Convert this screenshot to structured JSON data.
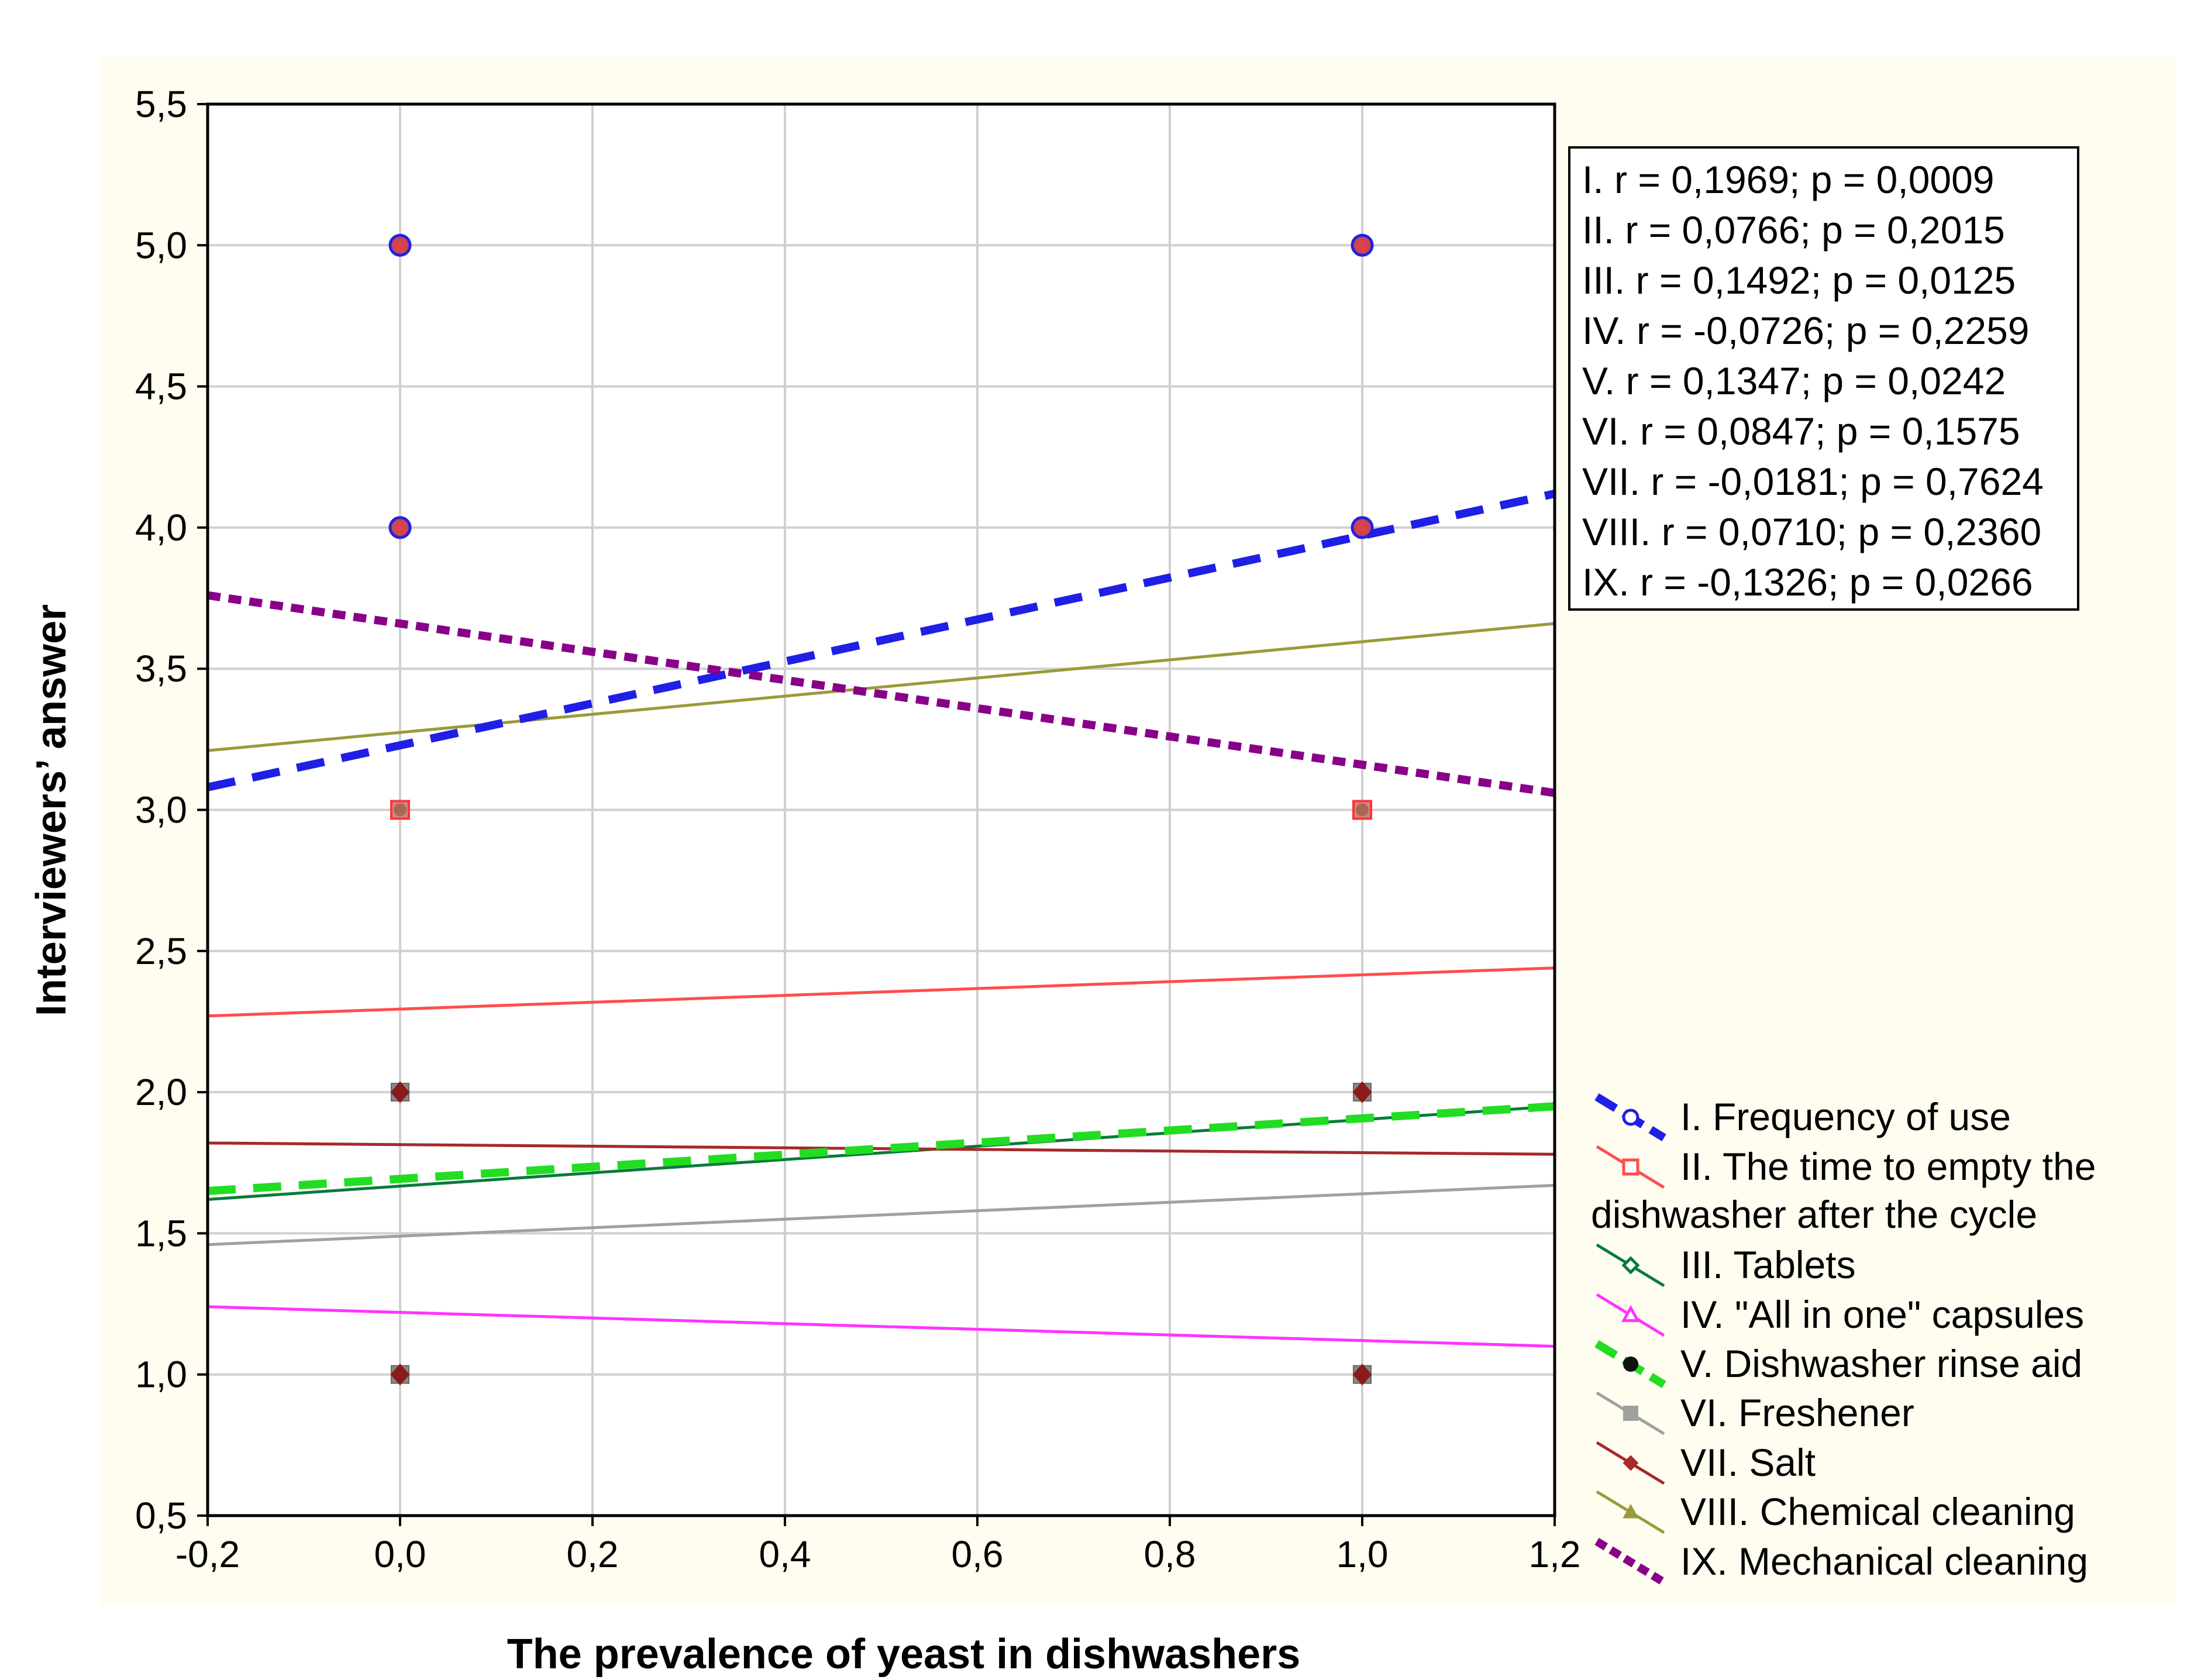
{
  "chart_data": {
    "type": "scatter",
    "xlabel": "The prevalence of yeast  in dishwashers",
    "ylabel": "Interviewers’ answer",
    "xlim": [
      -0.2,
      1.2
    ],
    "ylim": [
      0.5,
      5.5
    ],
    "x_ticks": [
      "-0,2",
      "0,0",
      "0,2",
      "0,4",
      "0,6",
      "0,8",
      "1,0",
      "1,2"
    ],
    "y_ticks": [
      "0,5",
      "1,0",
      "1,5",
      "2,0",
      "2,5",
      "3,0",
      "3,5",
      "4,0",
      "4,5",
      "5,0",
      "5,5"
    ],
    "x_tick_values": [
      -0.2,
      0.0,
      0.2,
      0.4,
      0.6,
      0.8,
      1.0,
      1.2
    ],
    "y_tick_values": [
      0.5,
      1.0,
      1.5,
      2.0,
      2.5,
      3.0,
      3.5,
      4.0,
      4.5,
      5.0,
      5.5
    ],
    "grid": true,
    "stats_box": [
      "I. r = 0,1969; p = 0,0009",
      "II. r = 0,0766; p = 0,2015",
      "III. r = 0,1492; p = 0,0125",
      "IV. r = -0,0726; p = 0,2259",
      "V. r = 0,1347; p = 0,0242",
      "VI. r = 0,0847; p = 0,1575",
      "VII. r = -0,0181; p = 0,7624",
      "VIII. r = 0,0710; p = 0,2360",
      "IX. r = -0,1326; p = 0,0266"
    ],
    "points": [
      {
        "x": 0,
        "y": 5
      },
      {
        "x": 0,
        "y": 4
      },
      {
        "x": 0,
        "y": 3
      },
      {
        "x": 0,
        "y": 2
      },
      {
        "x": 0,
        "y": 1
      },
      {
        "x": 1,
        "y": 5
      },
      {
        "x": 1,
        "y": 4
      },
      {
        "x": 1,
        "y": 3
      },
      {
        "x": 1,
        "y": 2
      },
      {
        "x": 1,
        "y": 1
      }
    ],
    "series": [
      {
        "name": "I. Frequency of use",
        "color": "#1f1fe6",
        "style": "dashed-thick",
        "marker": "circle",
        "fit": {
          "x": [
            -0.2,
            1.2
          ],
          "y": [
            3.08,
            4.12
          ]
        }
      },
      {
        "name": "II. The time to empty the dishwasher after the cycle",
        "color": "#ff4d4d",
        "style": "solid",
        "marker": "square",
        "fit": {
          "x": [
            -0.2,
            1.2
          ],
          "y": [
            2.27,
            2.44
          ]
        }
      },
      {
        "name": "III. Tablets",
        "color": "#0a7a3a",
        "style": "solid",
        "marker": "diamond",
        "fit": {
          "x": [
            -0.2,
            1.2
          ],
          "y": [
            1.62,
            1.95
          ]
        }
      },
      {
        "name": "IV. \"All in one\" capsules",
        "color": "#ff33ff",
        "style": "solid",
        "marker": "triangle",
        "fit": {
          "x": [
            -0.2,
            1.2
          ],
          "y": [
            1.24,
            1.1
          ]
        }
      },
      {
        "name": "V. Dishwasher rinse aid",
        "color": "#22dd22",
        "style": "dashed-thick",
        "marker": "filled-circle",
        "fit": {
          "x": [
            -0.2,
            1.2
          ],
          "y": [
            1.65,
            1.95
          ]
        }
      },
      {
        "name": "VI. Freshener",
        "color": "#a0a0a0",
        "style": "solid",
        "marker": "filled-square",
        "fit": {
          "x": [
            -0.2,
            1.2
          ],
          "y": [
            1.46,
            1.67
          ]
        }
      },
      {
        "name": "VII. Salt",
        "color": "#a52a2a",
        "style": "solid",
        "marker": "filled-diamond",
        "fit": {
          "x": [
            -0.2,
            1.2
          ],
          "y": [
            1.82,
            1.78
          ]
        }
      },
      {
        "name": "VIII. Chemical cleaning",
        "color": "#9a9a3a",
        "style": "solid",
        "marker": "filled-triangle",
        "fit": {
          "x": [
            -0.2,
            1.2
          ],
          "y": [
            3.21,
            3.66
          ]
        }
      },
      {
        "name": "IX. Mechanical cleaning",
        "color": "#880088",
        "style": "dotted-thick",
        "marker": "none",
        "fit": {
          "x": [
            -0.2,
            1.2
          ],
          "y": [
            3.76,
            3.06
          ]
        }
      }
    ]
  }
}
